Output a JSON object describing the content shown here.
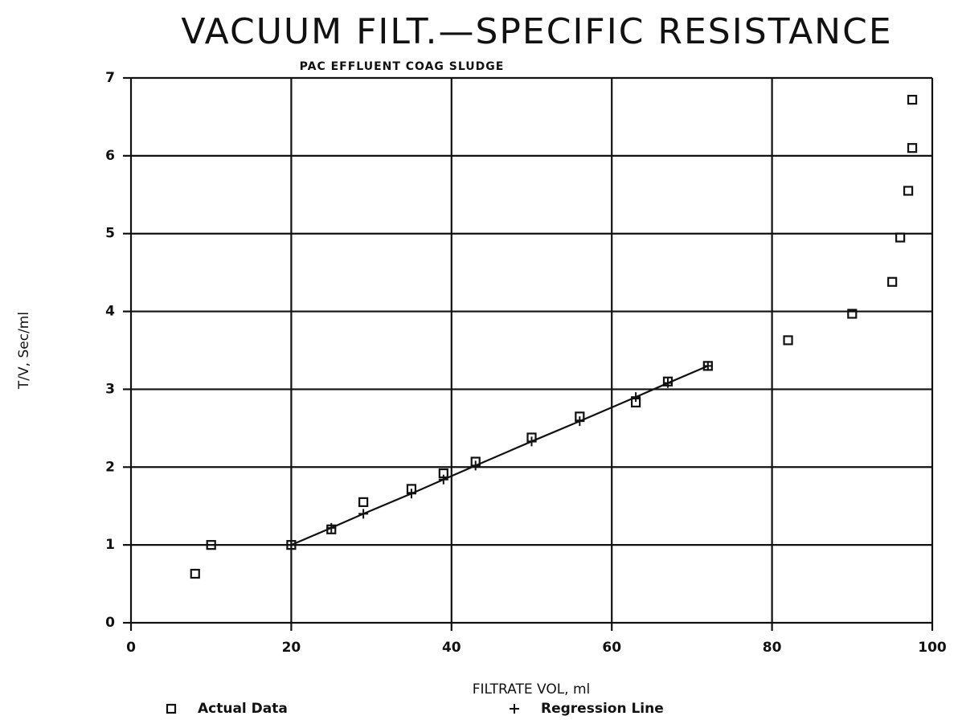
{
  "chart_data": {
    "type": "scatter",
    "title": "VACUUM FILT.—SPECIFIC RESISTANCE",
    "subtitle": "PAC EFFLUENT COAG SLUDGE",
    "x_label": "FILTRATE VOL, ml",
    "y_label": "T/V, Sec/ml",
    "xlim": [
      0,
      100
    ],
    "xticks": [
      0,
      20,
      40,
      60,
      80,
      100
    ],
    "ylim": [
      0,
      7
    ],
    "yticks": [
      0,
      1,
      2,
      3,
      4,
      5,
      6,
      7
    ],
    "grid": true,
    "legend": "bottom",
    "series": [
      {
        "name": "Actual Data",
        "color": "#111111",
        "marker": "square",
        "style": "points",
        "x": [
          8,
          10,
          20,
          25,
          29,
          35,
          39,
          43,
          50,
          56,
          63,
          67,
          72,
          82,
          90,
          95,
          96,
          97,
          97.5,
          97.5
        ],
        "values": [
          0.63,
          1.0,
          1.0,
          1.2,
          1.55,
          1.72,
          1.92,
          2.07,
          2.38,
          2.65,
          2.83,
          3.1,
          3.3,
          3.63,
          3.97,
          4.38,
          4.95,
          5.55,
          6.1,
          6.72
        ]
      },
      {
        "name": "Regression Line",
        "color": "#111111",
        "marker": "plus",
        "style": "line",
        "x": [
          20,
          25,
          29,
          35,
          39,
          43,
          50,
          56,
          63,
          67,
          72
        ],
        "values": [
          1.0,
          1.22,
          1.4,
          1.66,
          1.84,
          2.02,
          2.33,
          2.59,
          2.9,
          3.08,
          3.3
        ]
      }
    ]
  }
}
